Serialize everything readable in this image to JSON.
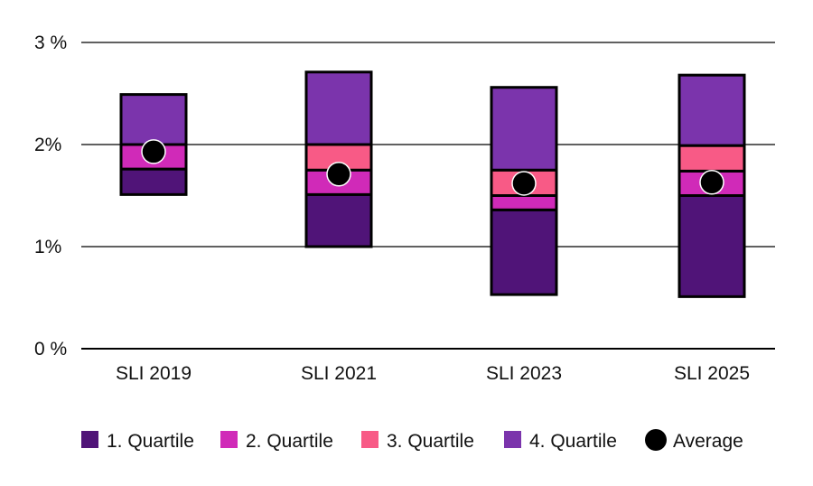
{
  "chart_data": {
    "type": "bar",
    "subtype": "stacked-floating-quartile",
    "categories": [
      "SLI 2019",
      "SLI 2021",
      "SLI 2023",
      "SLI 2025"
    ],
    "ylim": [
      0,
      3
    ],
    "yticks": [
      0,
      1,
      2,
      3
    ],
    "ytick_labels": [
      "0 %",
      "1%",
      "2%",
      "3 %"
    ],
    "grid": true,
    "legend_placement": "bottom",
    "series": [
      {
        "name": "1. Quartile",
        "color": "#501478",
        "ranges": [
          [
            1.51,
            1.76
          ],
          [
            1.0,
            1.51
          ],
          [
            0.53,
            1.36
          ],
          [
            0.51,
            1.5
          ]
        ]
      },
      {
        "name": "2. Quartile",
        "color": "#d02ab8",
        "ranges": [
          [
            1.76,
            2.0
          ],
          [
            1.51,
            1.75
          ],
          [
            1.36,
            1.5
          ],
          [
            1.5,
            1.74
          ]
        ]
      },
      {
        "name": "3. Quartile",
        "color": "#f85a86",
        "ranges": [
          null,
          [
            1.75,
            2.0
          ],
          [
            1.5,
            1.75
          ],
          [
            1.74,
            1.99
          ]
        ]
      },
      {
        "name": "4. Quartile",
        "color": "#7b34ac",
        "ranges": [
          [
            2.0,
            2.49
          ],
          [
            2.0,
            2.71
          ],
          [
            1.75,
            2.56
          ],
          [
            1.99,
            2.68
          ]
        ]
      }
    ],
    "average": {
      "name": "Average",
      "color": "#000000",
      "values": [
        1.93,
        1.71,
        1.62,
        1.63
      ]
    }
  }
}
